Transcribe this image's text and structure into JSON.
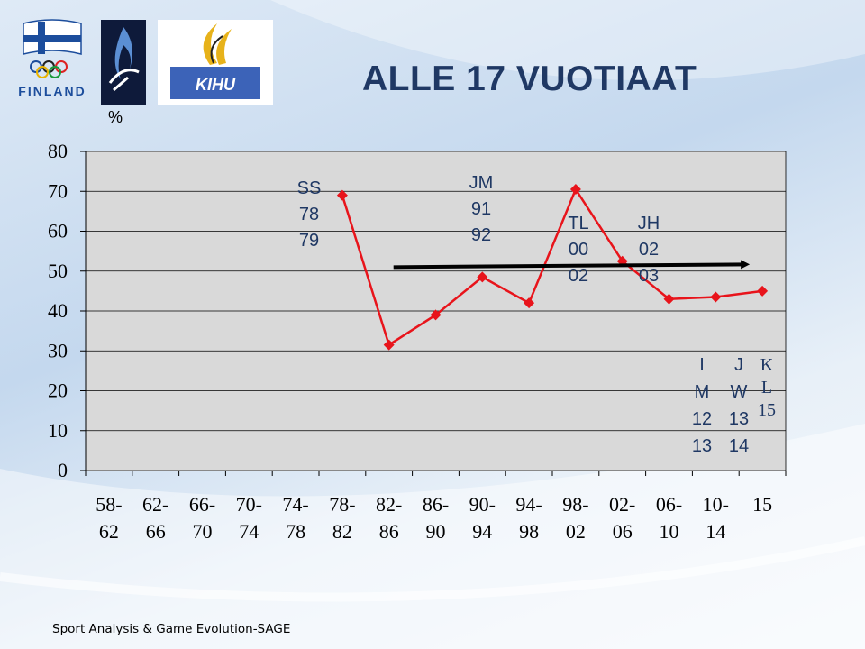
{
  "slide": {
    "title": "ALLE 17 VUOTIAAT",
    "footer": "Sport Analysis & Game Evolution-SAGE",
    "colors": {
      "title": "#1f3864",
      "series": "#e8141b",
      "plot_bg": "#d9d9d9",
      "arrow": "#000000"
    }
  },
  "logos": {
    "finland": {
      "icon": "finnish-olympic-logo-icon",
      "text": "FINLAND"
    },
    "flame": {
      "icon": "paralympic-flame-logo-icon"
    },
    "kihu": {
      "icon": "kihu-logo-icon",
      "text": "KIHU"
    }
  },
  "chart_data": {
    "type": "line",
    "title": "ALLE 17 VUOTIAAT",
    "ylabel": "%",
    "xlabel": "",
    "ylim": [
      0,
      80
    ],
    "yticks": [
      "0",
      "10",
      "20",
      "30",
      "40",
      "50",
      "60",
      "70",
      "80"
    ],
    "grid": true,
    "categories": [
      "58-62",
      "62-66",
      "66-70",
      "70-74",
      "74-78",
      "78-82",
      "82-86",
      "86-90",
      "90-94",
      "94-98",
      "98-02",
      "02-06",
      "06-10",
      "10-14",
      "15"
    ],
    "category_lines": [
      [
        "58-",
        "62"
      ],
      [
        "62-",
        "66"
      ],
      [
        "66-",
        "70"
      ],
      [
        "70-",
        "74"
      ],
      [
        "74-",
        "78"
      ],
      [
        "78-",
        "82"
      ],
      [
        "82-",
        "86"
      ],
      [
        "86-",
        "90"
      ],
      [
        "90-",
        "94"
      ],
      [
        "94-",
        "98"
      ],
      [
        "98-",
        "02"
      ],
      [
        "02-",
        "06"
      ],
      [
        "06-",
        "10"
      ],
      [
        "10-",
        "14"
      ],
      [
        "15",
        ""
      ]
    ],
    "series": [
      {
        "values": [
          null,
          null,
          null,
          null,
          null,
          69,
          31.5,
          39,
          48.5,
          42,
          70.5,
          52.5,
          43,
          43.5,
          45
        ]
      }
    ],
    "annotations": [
      {
        "lines": [
          "SS",
          "78",
          "79"
        ],
        "style": "sans"
      },
      {
        "lines": [
          "JM",
          "91",
          "92"
        ],
        "style": "sans"
      },
      {
        "lines": [
          "TL",
          "00",
          "02"
        ],
        "style": "sans"
      },
      {
        "lines": [
          "JH",
          "02",
          "03"
        ],
        "style": "sans"
      },
      {
        "lines": [
          "I",
          "M",
          "12",
          "13"
        ],
        "style": "sans"
      },
      {
        "lines": [
          "J",
          "W",
          "13",
          "14"
        ],
        "style": "sans"
      },
      {
        "lines": [
          "K",
          "L",
          "15"
        ],
        "style": "serif"
      }
    ],
    "trend_arrow": {
      "from_category": 6,
      "to_category": 14,
      "value": 51
    }
  }
}
